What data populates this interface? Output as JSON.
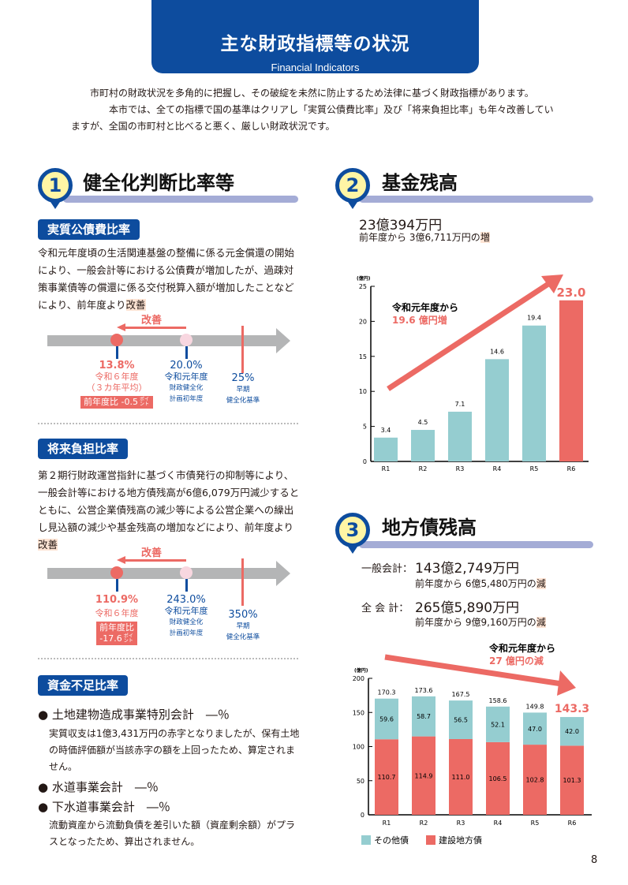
{
  "header": {
    "title": "主な財政指標等の状況",
    "subtitle": "Financial Indicators"
  },
  "intro": [
    "市町村の財政状況を多角的に把握し、その破綻を未然に防止するため法律に基づく財政指標があります。",
    "本市では、全ての指標で国の基準はクリアし「実質公債費比率」及び「将来負担比率」も年々改善していますが、全国の市町村と比べると悪く、厳しい財政状況です。"
  ],
  "s1": {
    "num": "1",
    "title": "健全化判断比率等",
    "a": {
      "badge": "実質公債費比率",
      "text": "令和元年度頃の生活関連基盤の整備に係る元金償還の開始により、一般会計等における公債費が増加したが、過疎対策事業債等の償還に係る交付税算入額が増加したことなどにより、前年度より",
      "hl": "改善",
      "scale": {
        "arrow": "改善",
        "cur_val": "13.8%",
        "cur_l1": "令和６年度",
        "cur_l2": "（３カ年平均）",
        "cur_diff": "前年度比 -0.5",
        "pt": "ポイント",
        "base_val": "20.0%",
        "base_l1": "令和元年度",
        "base_l2": "財政健全化",
        "base_l3": "計画初年度",
        "std_val": "25%",
        "std_l1": "早期",
        "std_l2": "健全化基準"
      }
    },
    "b": {
      "badge": "将来負担比率",
      "text": "第２期行財政運営指針に基づく市債発行の抑制等により、一般会計等における地方債残高が6億6,079万円減少するとともに、公営企業債残高の減少等による公営企業への繰出し見込額の減少や基金残高の増加などにより、前年度より",
      "hl": "改善",
      "scale": {
        "arrow": "改善",
        "cur_val": "110.9%",
        "cur_l1": "令和６年度",
        "cur_diff1": "前年度比",
        "cur_diff2": "-17.6",
        "pt": "ポイント",
        "base_val": "243.0%",
        "base_l1": "令和元年度",
        "base_l2": "財政健全化",
        "base_l3": "計画初年度",
        "std_val": "350%",
        "std_l1": "早期",
        "std_l2": "健全化基準"
      }
    },
    "c": {
      "badge": "資金不足比率",
      "items": [
        {
          "name": "土地建物造成事業特別会計　―％",
          "note": "実質収支は1億3,431万円の赤字となりましたが、保有土地の時価評価額が当該赤字の額を上回ったため、算定されません。"
        },
        {
          "name": "水道事業会計　―％"
        },
        {
          "name": "下水道事業会計　―％",
          "note": "流動資産から流動負債を差引いた額（資産剰余額）がプラスとなったため、算出されません。"
        }
      ]
    }
  },
  "s2": {
    "num": "2",
    "title": "基金残高",
    "amount": "23億394万円",
    "change": "前年度から 3億6,711万円の",
    "dir": "増"
  },
  "s3": {
    "num": "3",
    "title": "地方債残高",
    "general_label": "一般会計：",
    "general_amount": "143億2,749万円",
    "general_change": "前年度から 6億5,480万円の",
    "general_dir": "減",
    "all_label": "全 会 計：",
    "all_amount": "265億5,890万円",
    "all_change": "前年度から 9億9,160万円の",
    "all_dir": "減"
  },
  "page_number": "8",
  "colors": {
    "blue": "#0d4c9e",
    "teal": "#95cdd0",
    "red": "#ec6a64"
  },
  "chart_data": [
    {
      "type": "bar",
      "title": "基金残高",
      "ylabel": "(億円)",
      "ylim": [
        0,
        25
      ],
      "yticks": [
        0,
        5,
        10,
        15,
        20,
        25
      ],
      "categories": [
        "R1",
        "R2",
        "R3",
        "R4",
        "R5",
        "R6"
      ],
      "values": [
        3.4,
        4.5,
        7.1,
        14.6,
        19.4,
        23.0
      ],
      "annotation": [
        "令和元年度から",
        "19.6 億円増"
      ]
    },
    {
      "type": "bar",
      "stacked": true,
      "title": "地方債残高",
      "ylabel": "(億円)",
      "ylim": [
        0,
        200
      ],
      "yticks": [
        0,
        50,
        100,
        150,
        200
      ],
      "categories": [
        "R1",
        "R2",
        "R3",
        "R4",
        "R5",
        "R6"
      ],
      "series": [
        {
          "name": "建設地方債",
          "values": [
            110.7,
            114.9,
            111.0,
            106.5,
            102.8,
            101.3
          ]
        },
        {
          "name": "その他債",
          "values": [
            59.6,
            58.7,
            56.5,
            52.1,
            47.0,
            42.0
          ]
        }
      ],
      "totals": [
        "170.3",
        "173.6",
        "167.5",
        "158.6",
        "149.8",
        "143.3"
      ],
      "annotation": [
        "令和元年度から",
        "27 億円の減"
      ],
      "legend": "bottom-left"
    }
  ]
}
